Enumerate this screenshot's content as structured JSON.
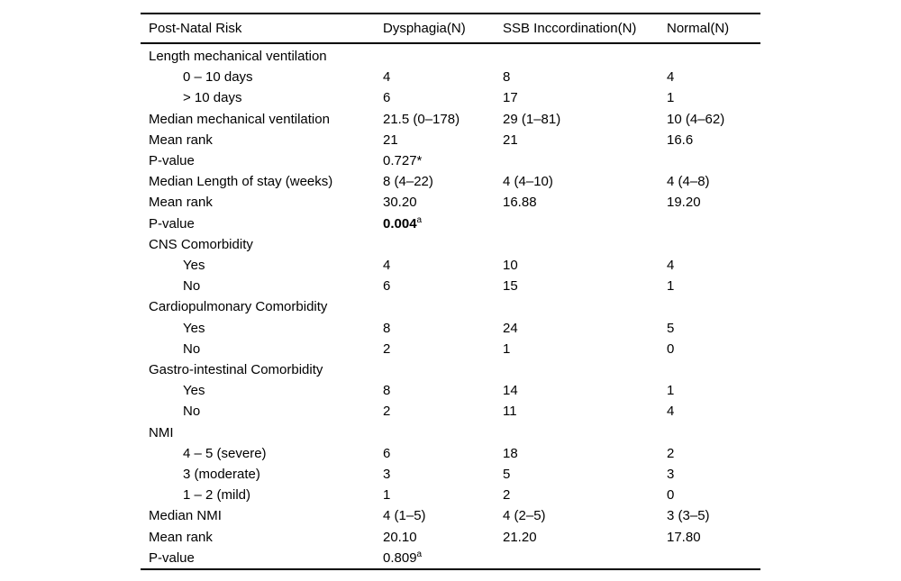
{
  "table": {
    "columns": [
      "Post-Natal Risk",
      "Dysphagia(N)",
      "SSB Inccordination(N)",
      "Normal(N)"
    ],
    "rows": [
      {
        "label": "Length mechanical ventilation",
        "indent": false,
        "cells": [
          "",
          "",
          ""
        ]
      },
      {
        "label": "0 – 10 days",
        "indent": true,
        "cells": [
          "4",
          "8",
          "4"
        ]
      },
      {
        "label": "> 10 days",
        "indent": true,
        "cells": [
          "6",
          "17",
          "1"
        ]
      },
      {
        "label": "Median mechanical ventilation",
        "indent": false,
        "cells": [
          "21.5 (0–178)",
          "29 (1–81)",
          "10 (4–62)"
        ]
      },
      {
        "label": "Mean rank",
        "indent": false,
        "cells": [
          "21",
          "21",
          "16.6"
        ]
      },
      {
        "label": "P-value",
        "indent": false,
        "cells": [
          "0.727*",
          "",
          ""
        ]
      },
      {
        "label": "Median Length of stay (weeks)",
        "indent": false,
        "cells": [
          "8 (4–22)",
          "4 (4–10)",
          "4 (4–8)"
        ]
      },
      {
        "label": "Mean rank",
        "indent": false,
        "cells": [
          "30.20",
          "16.88",
          "19.20"
        ]
      },
      {
        "label": "P-value",
        "indent": false,
        "cells": [
          {
            "text": "0.004",
            "bold": true,
            "sup": "a"
          },
          "",
          ""
        ]
      },
      {
        "label": "CNS Comorbidity",
        "indent": false,
        "cells": [
          "",
          "",
          ""
        ]
      },
      {
        "label": "Yes",
        "indent": true,
        "cells": [
          "4",
          "10",
          "4"
        ]
      },
      {
        "label": "No",
        "indent": true,
        "cells": [
          "6",
          "15",
          "1"
        ]
      },
      {
        "label": "Cardiopulmonary Comorbidity",
        "indent": false,
        "cells": [
          "",
          "",
          ""
        ]
      },
      {
        "label": "Yes",
        "indent": true,
        "cells": [
          "8",
          "24",
          "5"
        ]
      },
      {
        "label": "No",
        "indent": true,
        "cells": [
          "2",
          "1",
          "0"
        ]
      },
      {
        "label": "Gastro-intestinal Comorbidity",
        "indent": false,
        "cells": [
          "",
          "",
          ""
        ]
      },
      {
        "label": "Yes",
        "indent": true,
        "cells": [
          "8",
          "14",
          "1"
        ]
      },
      {
        "label": "No",
        "indent": true,
        "cells": [
          "2",
          "11",
          "4"
        ]
      },
      {
        "label": "NMI",
        "indent": false,
        "cells": [
          "",
          "",
          ""
        ]
      },
      {
        "label": "4 – 5 (severe)",
        "indent": true,
        "cells": [
          "6",
          "18",
          "2"
        ]
      },
      {
        "label": "3 (moderate)",
        "indent": true,
        "cells": [
          "3",
          "5",
          "3"
        ]
      },
      {
        "label": "1 – 2 (mild)",
        "indent": true,
        "cells": [
          "1",
          "2",
          "0"
        ]
      },
      {
        "label": "Median NMI",
        "indent": false,
        "cells": [
          "4 (1–5)",
          "4 (2–5)",
          "3 (3–5)"
        ]
      },
      {
        "label": "Mean rank",
        "indent": false,
        "cells": [
          "20.10",
          "21.20",
          "17.80"
        ]
      },
      {
        "label": "P-value",
        "indent": false,
        "cells": [
          {
            "text": "0.809",
            "bold": false,
            "sup": "a"
          },
          "",
          ""
        ]
      }
    ]
  }
}
